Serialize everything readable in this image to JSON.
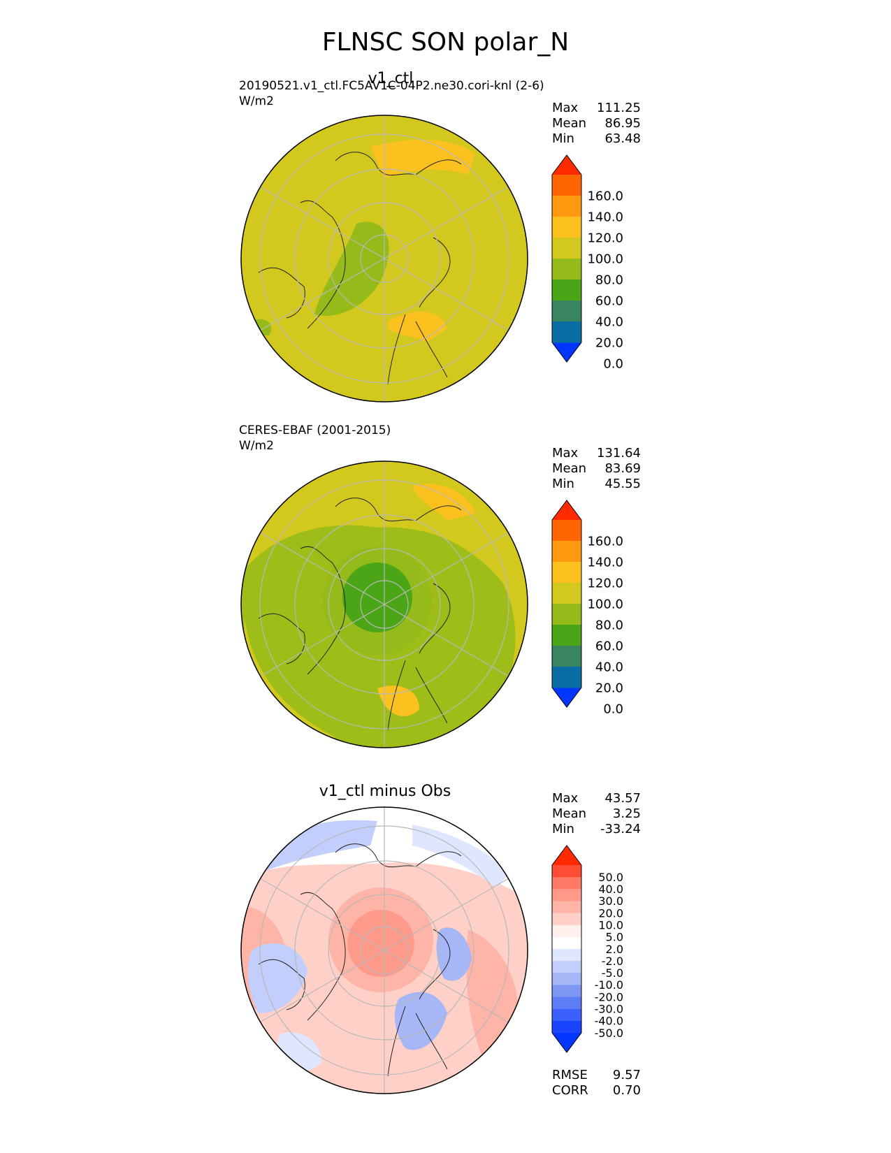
{
  "figure": {
    "title": "FLNSC SON polar_N"
  },
  "panels": [
    {
      "title": "v1_ctl",
      "subtitle": "20190521.v1_ctl.FC5AV1C-04P2.ne30.cori-knl (2-6)",
      "units": "W/m2",
      "stats": {
        "max_label": "Max",
        "max": "111.25",
        "mean_label": "Mean",
        "mean": "86.95",
        "min_label": "Min",
        "min": "63.48"
      },
      "colorbar": {
        "labels": [
          "160.0",
          "140.0",
          "120.0",
          "100.0",
          "80.0",
          "60.0",
          "40.0",
          "20.0",
          "0.0"
        ],
        "colors": [
          "#ff2a00",
          "#ff6600",
          "#ff9a10",
          "#fbc21f",
          "#d3c81d",
          "#94bb19",
          "#4aa517",
          "#388560",
          "#0a6da3",
          "#0036ff"
        ]
      },
      "map": {
        "projection": "north polar stereographic",
        "background": "#d3c81d"
      }
    },
    {
      "title": "",
      "subtitle": "CERES-EBAF (2001-2015)",
      "units": "W/m2",
      "stats": {
        "max_label": "Max",
        "max": "131.64",
        "mean_label": "Mean",
        "mean": "83.69",
        "min_label": "Min",
        "min": "45.55"
      },
      "colorbar": {
        "labels": [
          "160.0",
          "140.0",
          "120.0",
          "100.0",
          "80.0",
          "60.0",
          "40.0",
          "20.0",
          "0.0"
        ],
        "colors": [
          "#ff2a00",
          "#ff6600",
          "#ff9a10",
          "#fbc21f",
          "#d3c81d",
          "#94bb19",
          "#4aa517",
          "#388560",
          "#0a6da3",
          "#0036ff"
        ]
      },
      "map": {
        "projection": "north polar stereographic",
        "background": "#d3c81d"
      }
    },
    {
      "title": "v1_ctl minus Obs",
      "subtitle": "",
      "units": "",
      "stats": {
        "max_label": "Max",
        "max": "43.57",
        "mean_label": "Mean",
        "mean": "3.25",
        "min_label": "Min",
        "min": "-33.24"
      },
      "colorbar": {
        "labels": [
          "50.0",
          "40.0",
          "30.0",
          "20.0",
          "10.0",
          "5.0",
          "2.0",
          "-2.0",
          "-5.0",
          "-10.0",
          "-20.0",
          "-30.0",
          "-40.0",
          "-50.0"
        ],
        "colors": [
          "#ff2a00",
          "#ff4d33",
          "#ff7a66",
          "#ff9a8a",
          "#ffb4a8",
          "#ffd0c8",
          "#fff0ee",
          "#ffffff",
          "#dfe6ff",
          "#c2cefb",
          "#a6b6f6",
          "#7f98f4",
          "#5f7ef5",
          "#3c60fb",
          "#1a44ff",
          "#0036ff"
        ]
      },
      "metrics": {
        "rmse_label": "RMSE",
        "rmse": "9.57",
        "corr_label": "CORR",
        "corr": "0.70"
      },
      "map": {
        "projection": "north polar stereographic",
        "background": "#ffffff"
      }
    }
  ]
}
